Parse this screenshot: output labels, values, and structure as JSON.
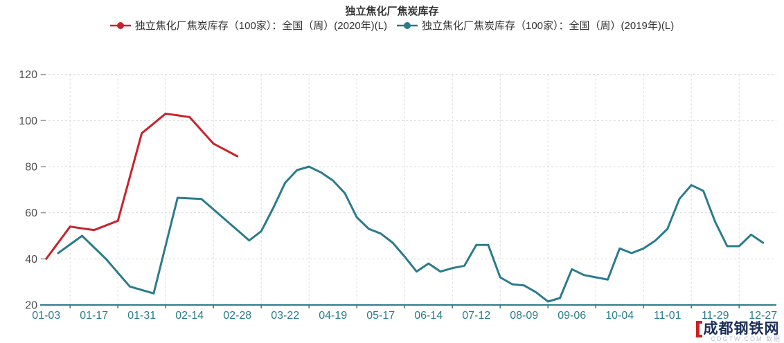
{
  "page": {
    "title": "独立焦化厂焦炭库存"
  },
  "legend": [
    {
      "id": "series-2020",
      "label": "独立焦化厂焦炭库存（100家）：全国（周）(2020年)(L)",
      "color": "#c8232c"
    },
    {
      "id": "series-2019",
      "label": "独立焦化厂焦炭库存（100家）：全国（周）(2019年)(L)",
      "color": "#2b7b8c"
    }
  ],
  "watermark": {
    "text": "成都钢铁网",
    "subtext": "CDGTW.COM 数据"
  },
  "chart_data": {
    "type": "line",
    "title": "独立焦化厂焦炭库存",
    "grid": {
      "horizontal_dashed": true,
      "vertical_dashed": true,
      "color": "#dcdcdc"
    },
    "y_axis": {
      "min": 20,
      "max": 120,
      "interval": 20,
      "tick_labels": [
        20,
        40,
        60,
        80,
        100,
        120
      ],
      "label_color": "#4d4d4d"
    },
    "x_axis": {
      "total_categories": 61,
      "label_every_n_categories": 4,
      "tick_labels": [
        "01-03",
        "01-17",
        "01-31",
        "02-14",
        "02-28",
        "03-22",
        "04-19",
        "05-17",
        "06-14",
        "07-12",
        "08-09",
        "09-06",
        "10-04",
        "11-01",
        "11-29",
        "12-27"
      ],
      "color": "#2b7b8c"
    },
    "series": [
      {
        "id": "series-2020",
        "name": "独立焦化厂焦炭库存（100家）：全国（周）(2020年)(L)",
        "color": "#c8232c",
        "points": [
          [
            0,
            40
          ],
          [
            2,
            54
          ],
          [
            4,
            52.5
          ],
          [
            6,
            56.5
          ],
          [
            8,
            94.5
          ],
          [
            10,
            103
          ],
          [
            12,
            101.5
          ],
          [
            14,
            90
          ],
          [
            16,
            84.5
          ]
        ]
      },
      {
        "id": "series-2019",
        "name": "独立焦化厂焦炭库存（100家）：全国（周）(2019年)(L)",
        "color": "#2b7b8c",
        "points": [
          [
            1,
            42.5
          ],
          [
            3,
            50
          ],
          [
            5,
            40
          ],
          [
            7,
            28
          ],
          [
            9,
            25
          ],
          [
            11,
            66.5
          ],
          [
            13,
            66
          ],
          [
            15,
            57
          ],
          [
            17,
            48
          ],
          [
            18,
            52
          ],
          [
            19,
            62
          ],
          [
            20,
            73
          ],
          [
            21,
            78.5
          ],
          [
            22,
            80
          ],
          [
            23,
            77.5
          ],
          [
            24,
            74
          ],
          [
            25,
            68.5
          ],
          [
            26,
            58
          ],
          [
            27,
            53
          ],
          [
            28,
            51
          ],
          [
            29,
            47
          ],
          [
            30,
            41
          ],
          [
            31,
            34.5
          ],
          [
            32,
            38
          ],
          [
            33,
            34.5
          ],
          [
            34,
            36
          ],
          [
            35,
            37
          ],
          [
            36,
            46
          ],
          [
            37,
            46
          ],
          [
            38,
            32
          ],
          [
            39,
            29
          ],
          [
            40,
            28.5
          ],
          [
            41,
            25.5
          ],
          [
            42,
            21.5
          ],
          [
            43,
            23
          ],
          [
            44,
            35.5
          ],
          [
            45,
            33
          ],
          [
            46,
            32
          ],
          [
            47,
            31
          ],
          [
            48,
            44.5
          ],
          [
            49,
            42.5
          ],
          [
            50,
            44.5
          ],
          [
            51,
            48
          ],
          [
            52,
            53
          ],
          [
            53,
            66
          ],
          [
            54,
            72
          ],
          [
            55,
            69.5
          ],
          [
            56,
            56
          ],
          [
            57,
            45.5
          ],
          [
            58,
            45.5
          ],
          [
            59,
            50.5
          ],
          [
            60,
            47
          ]
        ]
      }
    ]
  }
}
